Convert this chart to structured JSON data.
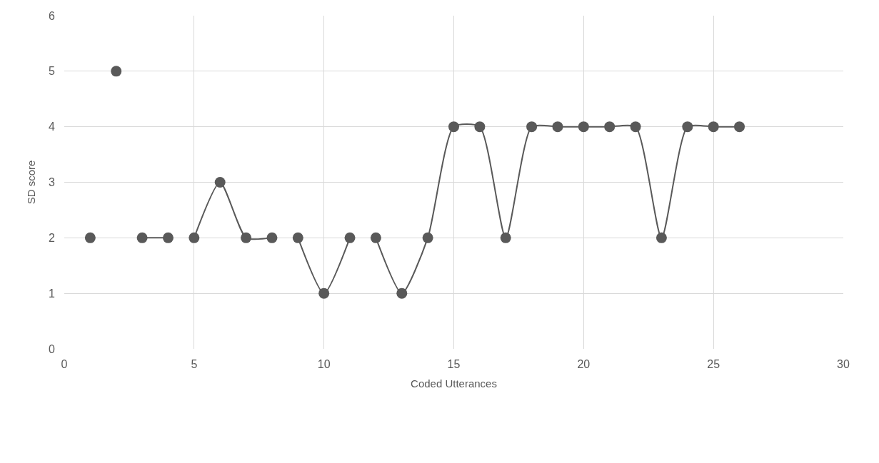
{
  "chart_data": {
    "type": "line",
    "xlabel": "Coded Utterances",
    "ylabel": "SD score",
    "xlim": [
      0,
      30
    ],
    "xticks": [
      0,
      5,
      10,
      15,
      20,
      25,
      30
    ],
    "ylim": [
      0,
      6
    ],
    "yticks": [
      0,
      1,
      2,
      3,
      4,
      5,
      6
    ],
    "grid": true,
    "marker": "circle",
    "line_style": "solid",
    "series": [
      {
        "color": "#595959",
        "x": [
          1
        ],
        "values": [
          2
        ]
      },
      {
        "color": "#595959",
        "x": [
          2
        ],
        "values": [
          5
        ]
      },
      {
        "color": "#595959",
        "x": [
          3,
          4
        ],
        "values": [
          2,
          2
        ]
      },
      {
        "color": "#595959",
        "x": [
          5,
          6,
          7,
          8
        ],
        "values": [
          2,
          3,
          2,
          2
        ]
      },
      {
        "color": "#595959",
        "x": [
          9,
          10,
          11
        ],
        "values": [
          2,
          1,
          2
        ]
      },
      {
        "color": "#595959",
        "x": [
          12,
          13,
          14,
          15,
          16,
          17,
          18,
          19,
          20,
          21,
          22,
          23,
          24,
          25,
          26
        ],
        "values": [
          2,
          1,
          2,
          4,
          4,
          2,
          4,
          4,
          4,
          4,
          4,
          2,
          4,
          4,
          4
        ]
      }
    ]
  }
}
